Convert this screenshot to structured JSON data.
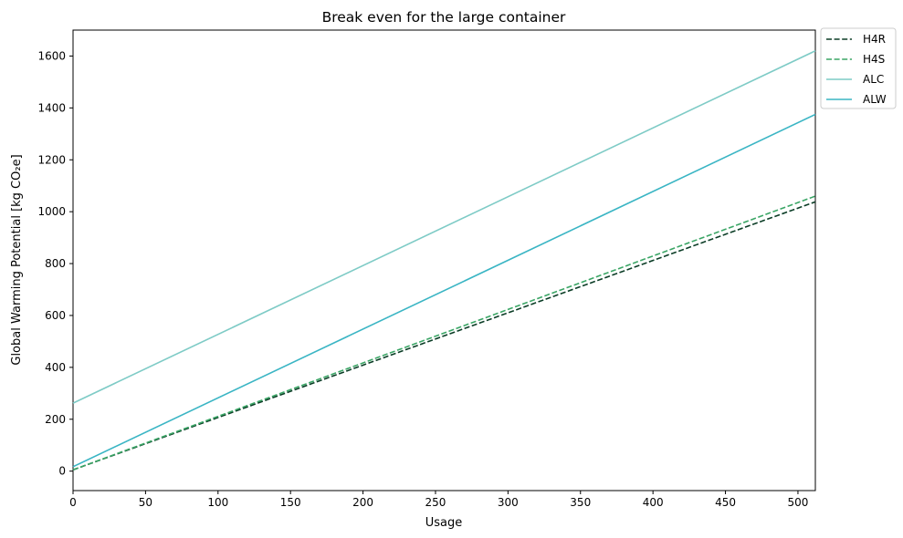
{
  "chart_data": {
    "type": "line",
    "title": "Break even for the large container",
    "xlabel": "Usage",
    "ylabel": "Global Warming Potential [kg CO₂e]",
    "xlim": [
      0,
      512
    ],
    "ylim": [
      -75,
      1700
    ],
    "x_ticks": [
      0,
      50,
      100,
      150,
      200,
      250,
      300,
      350,
      400,
      450,
      500
    ],
    "y_ticks": [
      0,
      200,
      400,
      600,
      800,
      1000,
      1200,
      1400,
      1600
    ],
    "grid": false,
    "legend_position": "outside-top-right",
    "series": [
      {
        "name": "H4R",
        "style": "dashed",
        "color": "#0b3d26",
        "x": [
          0,
          512
        ],
        "y": [
          5,
          1038
        ]
      },
      {
        "name": "H4S",
        "style": "dashed",
        "color": "#3aa565",
        "x": [
          0,
          512
        ],
        "y": [
          5,
          1060
        ]
      },
      {
        "name": "ALC",
        "style": "solid",
        "color": "#7ecbc6",
        "x": [
          0,
          512
        ],
        "y": [
          262,
          1620
        ]
      },
      {
        "name": "ALW",
        "style": "solid",
        "color": "#3ab5c4",
        "x": [
          0,
          512
        ],
        "y": [
          17,
          1375
        ]
      }
    ]
  }
}
